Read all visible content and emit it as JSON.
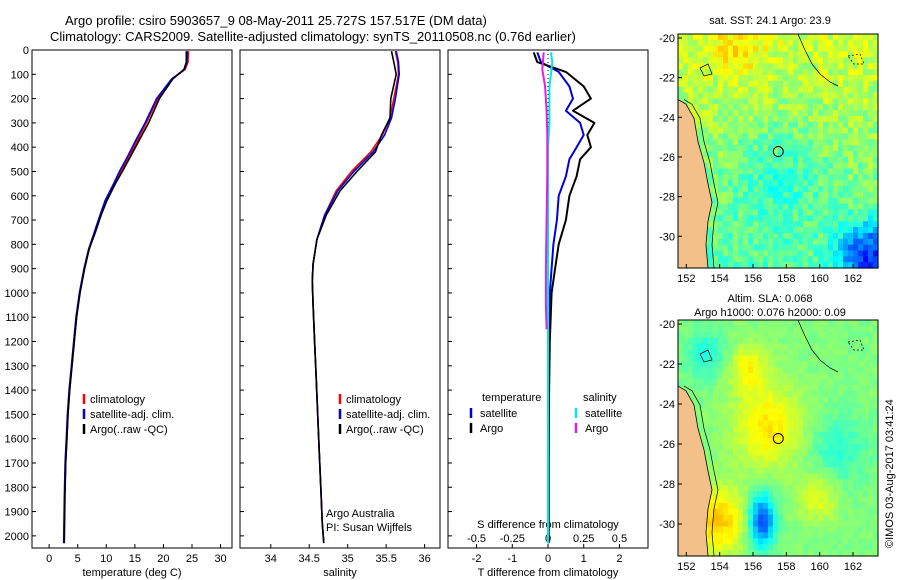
{
  "header": {
    "line1": "Argo profile: csiro 5903657_9 08-May-2011 25.727S 157.517E (DM data)",
    "line2": "Climatology: CARS2009. Satellite-adjusted climatology: synTS_20110508.nc (0.76d earlier)"
  },
  "colors": {
    "climatology": "#ff0000",
    "satellite": "#0000dd",
    "argo": "#000000",
    "sat_salinity": "#00e5ee",
    "argo_salinity": "#e020e0",
    "land": "#f4c08a"
  },
  "chart_data": [
    {
      "type": "line",
      "title": "",
      "xlabel": "temperature (deg C)",
      "ylabel": "",
      "xlim": [
        -3,
        32
      ],
      "ylim": [
        2050,
        0
      ],
      "xticks": [
        0,
        5,
        10,
        15,
        20,
        25,
        30
      ],
      "yticks": [
        0,
        100,
        200,
        300,
        400,
        500,
        600,
        700,
        800,
        900,
        1000,
        1100,
        1200,
        1300,
        1400,
        1500,
        1600,
        1700,
        1800,
        1900,
        2000
      ],
      "legend": [
        "climatology",
        "satellite-adj. clim.",
        "Argo(..raw -QC)"
      ],
      "series": [
        {
          "name": "climatology",
          "color": "#ff0000",
          "x": [
            24.4,
            24.3,
            23.8,
            21.5,
            19,
            17,
            15.5,
            14,
            12.5,
            11.5,
            10,
            9,
            8,
            7,
            6.2,
            5.4,
            4.8,
            4.4,
            4,
            3.6,
            3.3,
            3.1,
            2.9,
            2.7,
            2.6
          ],
          "y": [
            5,
            50,
            80,
            120,
            200,
            300,
            370,
            440,
            500,
            550,
            620,
            680,
            750,
            820,
            900,
            1000,
            1100,
            1200,
            1300,
            1400,
            1500,
            1600,
            1700,
            1850,
            2030
          ]
        },
        {
          "name": "satellite-adj. clim.",
          "color": "#0000dd",
          "x": [
            24.2,
            24.1,
            23.7,
            21.4,
            18.8,
            16.8,
            15.2,
            13.7,
            12.3,
            11.3,
            9.8,
            8.9,
            7.9,
            6.9,
            6.1,
            5.3,
            4.7,
            4.3,
            3.9,
            3.5,
            3.2,
            3,
            2.8,
            2.65,
            2.55
          ],
          "y": [
            5,
            50,
            80,
            120,
            200,
            300,
            370,
            440,
            500,
            550,
            620,
            680,
            750,
            820,
            900,
            1000,
            1100,
            1200,
            1300,
            1400,
            1500,
            1600,
            1700,
            1850,
            2030
          ]
        },
        {
          "name": "Argo(..raw -QC)",
          "color": "#000000",
          "x": [
            24,
            24,
            23.6,
            21.6,
            19.3,
            17.4,
            15.8,
            14.2,
            12.8,
            11.6,
            10.1,
            9.1,
            8.1,
            7,
            6.2,
            5.4,
            4.8,
            4.4,
            4,
            3.6,
            3.3,
            3.1,
            2.9,
            2.75,
            2.65
          ],
          "y": [
            5,
            50,
            80,
            120,
            200,
            300,
            370,
            440,
            500,
            550,
            620,
            680,
            750,
            820,
            900,
            1000,
            1100,
            1200,
            1300,
            1400,
            1500,
            1600,
            1700,
            1850,
            2030
          ]
        }
      ]
    },
    {
      "type": "line",
      "title": "",
      "xlabel": "salinity",
      "ylabel": "",
      "xlim": [
        33.6,
        36.2
      ],
      "ylim": [
        2050,
        0
      ],
      "xticks": [
        34,
        34.5,
        35,
        35.5,
        36
      ],
      "legend": [
        "climatology",
        "satellite-adj. clim.",
        "Argo(..raw -QC)"
      ],
      "annotations": [
        "Argo Australia",
        "PI: Susan Wijffels"
      ],
      "series": [
        {
          "name": "climatology",
          "color": "#ff0000",
          "x": [
            35.62,
            35.65,
            35.66,
            35.6,
            35.55,
            35.45,
            35.3,
            35.05,
            34.85,
            34.7,
            34.6,
            34.55,
            34.54,
            34.55,
            34.57,
            34.59,
            34.61,
            34.63,
            34.65,
            34.67,
            34.69
          ],
          "y": [
            5,
            50,
            100,
            200,
            280,
            350,
            420,
            500,
            580,
            680,
            780,
            880,
            950,
            1050,
            1200,
            1350,
            1500,
            1650,
            1800,
            1950,
            2030
          ]
        },
        {
          "name": "satellite-adj. clim.",
          "color": "#0000dd",
          "x": [
            35.63,
            35.66,
            35.67,
            35.62,
            35.57,
            35.48,
            35.33,
            35.08,
            34.87,
            34.7,
            34.6,
            34.55,
            34.54,
            34.55,
            34.57,
            34.59,
            34.61,
            34.63,
            34.65,
            34.67,
            34.69
          ],
          "y": [
            5,
            50,
            100,
            200,
            280,
            350,
            420,
            500,
            580,
            680,
            780,
            880,
            950,
            1050,
            1200,
            1350,
            1500,
            1650,
            1800,
            1950,
            2030
          ]
        },
        {
          "name": "Argo(..raw -QC)",
          "color": "#000000",
          "x": [
            35.57,
            35.6,
            35.63,
            35.56,
            35.55,
            35.44,
            35.36,
            35.12,
            34.9,
            34.72,
            34.6,
            34.55,
            34.54,
            34.55,
            34.57,
            34.59,
            34.61,
            34.63,
            34.65,
            34.67,
            34.69
          ],
          "y": [
            5,
            50,
            100,
            200,
            280,
            350,
            420,
            500,
            580,
            680,
            780,
            880,
            950,
            1050,
            1200,
            1350,
            1500,
            1650,
            1800,
            1950,
            2030
          ]
        }
      ]
    },
    {
      "type": "line",
      "title": "",
      "xlabel": "T difference from climatology",
      "xlabel_top": "S difference from climatology",
      "ylabel": "",
      "xlim": [
        -2.8,
        2.8
      ],
      "ylim": [
        2050,
        0
      ],
      "xticks": [
        -2,
        -1,
        0,
        1,
        2
      ],
      "xticks_top": [
        "-0.5",
        "-0.25",
        "0",
        "0.25",
        "0.5"
      ],
      "legend_titles": [
        "temperature",
        "salinity"
      ],
      "legend": [
        "satellite",
        "Argo",
        "satellite",
        "Argo"
      ],
      "series": [
        {
          "name": "temperature satellite",
          "color": "#0000dd",
          "x": [
            -0.3,
            -0.2,
            0.3,
            0.6,
            0.7,
            0.5,
            0.9,
            1,
            0.8,
            0.6,
            0.5,
            0.3,
            0.25,
            0.15,
            0.1,
            0.05,
            0,
            0,
            0,
            0
          ],
          "y": [
            10,
            50,
            90,
            150,
            200,
            250,
            300,
            350,
            400,
            450,
            520,
            600,
            700,
            800,
            900,
            1000,
            1200,
            1400,
            1700,
            2030
          ]
        },
        {
          "name": "temperature Argo",
          "color": "#000000",
          "x": [
            -0.4,
            -0.3,
            0.5,
            1,
            1.2,
            0.7,
            1.3,
            1.1,
            1.2,
            0.9,
            0.8,
            0.6,
            0.5,
            0.3,
            0.2,
            0.1,
            0.05,
            0.03,
            0.02,
            0.02
          ],
          "y": [
            10,
            50,
            90,
            150,
            200,
            250,
            300,
            350,
            400,
            450,
            520,
            600,
            700,
            800,
            900,
            1000,
            1200,
            1400,
            1700,
            2030
          ]
        },
        {
          "name": "salinity satellite",
          "color": "#00e5ee",
          "x": [
            0.02,
            0.03,
            0.02,
            0.01,
            0.01,
            0.01,
            0,
            0,
            0,
            0,
            0,
            0,
            0,
            0
          ],
          "y": [
            10,
            50,
            100,
            150,
            200,
            300,
            400,
            600,
            800,
            1000,
            1200,
            1400,
            1700,
            2030
          ]
        },
        {
          "name": "salinity Argo",
          "color": "#e020e0",
          "x": [
            -0.03,
            -0.04,
            -0.02,
            -0.01,
            -0.005,
            -0.005,
            -0.01,
            -0.015,
            -0.015,
            -0.01
          ],
          "y": [
            10,
            80,
            150,
            250,
            350,
            500,
            700,
            900,
            1050,
            1150
          ]
        }
      ]
    },
    {
      "type": "heatmap",
      "title": "sat. SST: 24.1  Argo: 23.9",
      "xticks": [
        152,
        154,
        156,
        158,
        160,
        162
      ],
      "yticks": [
        -20,
        -22,
        -24,
        -26,
        -28,
        -30
      ],
      "xlim": [
        151.5,
        163.5
      ],
      "ylim": [
        -31.6,
        -19.8
      ],
      "marker": {
        "lon": 157.517,
        "lat": -25.727
      }
    },
    {
      "type": "heatmap",
      "title": "Altim. SLA: 0.068",
      "subtitle": "Argo h1000: 0.076 h2000: 0.09",
      "xticks": [
        152,
        154,
        156,
        158,
        160,
        162
      ],
      "yticks": [
        -20,
        -22,
        -24,
        -26,
        -28,
        -30
      ],
      "xlim": [
        151.5,
        163.5
      ],
      "ylim": [
        -31.6,
        -19.8
      ],
      "marker": {
        "lon": 157.517,
        "lat": -25.727
      }
    }
  ],
  "footer": {
    "stamp": "©IMOS 03-Aug-2017 03:41:24"
  }
}
